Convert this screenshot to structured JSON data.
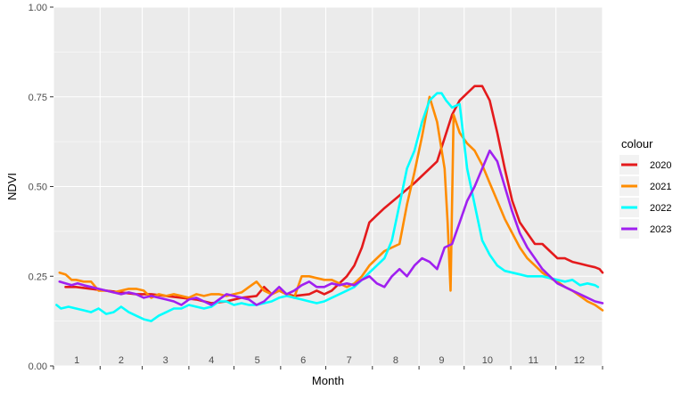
{
  "chart_data": {
    "type": "line",
    "xlabel": "Month",
    "ylabel": "NDVI",
    "ylim": [
      0,
      1
    ],
    "xlim": [
      0,
      365
    ],
    "y_ticks": [
      "0.00",
      "0.25",
      "0.50",
      "0.75",
      "1.00"
    ],
    "y_tick_values": [
      0,
      0.25,
      0.5,
      0.75,
      1.0
    ],
    "month_labels": [
      "1",
      "2",
      "3",
      "4",
      "5",
      "6",
      "7",
      "8",
      "9",
      "10",
      "11",
      "12"
    ],
    "grid": true,
    "legend": {
      "title": "colour",
      "position": "right"
    },
    "series": [
      {
        "name": "2020",
        "color": "#E41A1C",
        "x": [
          8,
          15,
          25,
          35,
          45,
          55,
          65,
          75,
          85,
          95,
          105,
          115,
          125,
          135,
          140,
          145,
          150,
          155,
          160,
          170,
          175,
          180,
          185,
          190,
          195,
          200,
          205,
          210,
          215,
          220,
          240,
          255,
          265,
          270,
          275,
          280,
          285,
          290,
          295,
          300,
          305,
          310,
          315,
          320,
          325,
          330,
          335,
          340,
          345,
          350,
          355,
          360,
          363,
          365
        ],
        "y": [
          0.22,
          0.22,
          0.215,
          0.21,
          0.205,
          0.2,
          0.2,
          0.195,
          0.19,
          0.185,
          0.175,
          0.18,
          0.19,
          0.195,
          0.22,
          0.2,
          0.21,
          0.2,
          0.195,
          0.2,
          0.21,
          0.2,
          0.21,
          0.23,
          0.25,
          0.28,
          0.33,
          0.4,
          0.42,
          0.44,
          0.51,
          0.57,
          0.7,
          0.74,
          0.76,
          0.78,
          0.78,
          0.74,
          0.65,
          0.55,
          0.46,
          0.4,
          0.37,
          0.34,
          0.34,
          0.32,
          0.3,
          0.3,
          0.29,
          0.285,
          0.28,
          0.275,
          0.27,
          0.26
        ]
      },
      {
        "name": "2021",
        "color": "#FF8C00",
        "x": [
          4,
          8,
          12,
          15,
          20,
          25,
          30,
          35,
          40,
          45,
          50,
          55,
          60,
          65,
          70,
          75,
          80,
          85,
          90,
          95,
          100,
          105,
          110,
          115,
          120,
          125,
          130,
          135,
          140,
          145,
          150,
          155,
          160,
          165,
          170,
          175,
          180,
          185,
          190,
          195,
          200,
          205,
          210,
          215,
          220,
          225,
          230,
          235,
          240,
          245,
          250,
          255,
          260,
          262,
          264,
          266,
          270,
          275,
          280,
          285,
          290,
          295,
          300,
          305,
          310,
          315,
          320,
          325,
          330,
          335,
          340,
          345,
          350,
          355,
          360,
          365
        ],
        "y": [
          0.26,
          0.255,
          0.24,
          0.24,
          0.235,
          0.235,
          0.21,
          0.21,
          0.205,
          0.21,
          0.215,
          0.215,
          0.21,
          0.19,
          0.2,
          0.195,
          0.2,
          0.195,
          0.19,
          0.2,
          0.195,
          0.2,
          0.2,
          0.195,
          0.2,
          0.205,
          0.22,
          0.235,
          0.21,
          0.2,
          0.21,
          0.2,
          0.19,
          0.25,
          0.25,
          0.245,
          0.24,
          0.24,
          0.23,
          0.22,
          0.23,
          0.25,
          0.28,
          0.3,
          0.32,
          0.33,
          0.34,
          0.45,
          0.54,
          0.64,
          0.75,
          0.68,
          0.55,
          0.4,
          0.21,
          0.7,
          0.65,
          0.62,
          0.6,
          0.56,
          0.51,
          0.46,
          0.41,
          0.37,
          0.33,
          0.3,
          0.28,
          0.26,
          0.245,
          0.235,
          0.22,
          0.21,
          0.195,
          0.18,
          0.17,
          0.155
        ]
      },
      {
        "name": "2022",
        "color": "#00FFFF",
        "x": [
          2,
          5,
          10,
          15,
          20,
          25,
          30,
          35,
          40,
          45,
          50,
          55,
          60,
          65,
          70,
          75,
          80,
          85,
          90,
          95,
          100,
          105,
          110,
          115,
          120,
          125,
          130,
          135,
          140,
          145,
          150,
          155,
          160,
          165,
          170,
          175,
          180,
          185,
          190,
          195,
          200,
          205,
          210,
          215,
          220,
          225,
          230,
          235,
          240,
          245,
          250,
          255,
          258,
          261,
          265,
          270,
          275,
          280,
          285,
          290,
          295,
          300,
          305,
          310,
          315,
          320,
          325,
          330,
          335,
          340,
          345,
          350,
          355,
          360,
          362
        ],
        "y": [
          0.17,
          0.16,
          0.165,
          0.16,
          0.155,
          0.15,
          0.16,
          0.145,
          0.15,
          0.165,
          0.15,
          0.14,
          0.13,
          0.125,
          0.14,
          0.15,
          0.16,
          0.16,
          0.17,
          0.165,
          0.16,
          0.165,
          0.18,
          0.18,
          0.17,
          0.175,
          0.17,
          0.17,
          0.175,
          0.18,
          0.19,
          0.195,
          0.19,
          0.185,
          0.18,
          0.175,
          0.18,
          0.19,
          0.2,
          0.21,
          0.22,
          0.24,
          0.26,
          0.28,
          0.3,
          0.35,
          0.45,
          0.55,
          0.6,
          0.68,
          0.74,
          0.76,
          0.76,
          0.74,
          0.72,
          0.73,
          0.55,
          0.45,
          0.35,
          0.31,
          0.28,
          0.265,
          0.26,
          0.255,
          0.25,
          0.25,
          0.25,
          0.245,
          0.24,
          0.235,
          0.24,
          0.225,
          0.23,
          0.225,
          0.22
        ]
      },
      {
        "name": "2023",
        "color": "#A020F0",
        "x": [
          4,
          8,
          12,
          16,
          20,
          25,
          30,
          35,
          40,
          45,
          50,
          55,
          60,
          65,
          70,
          75,
          80,
          85,
          90,
          95,
          100,
          105,
          110,
          115,
          120,
          125,
          130,
          135,
          140,
          145,
          150,
          155,
          160,
          165,
          170,
          175,
          180,
          185,
          190,
          195,
          200,
          205,
          210,
          215,
          220,
          225,
          230,
          235,
          240,
          245,
          250,
          255,
          260,
          265,
          270,
          275,
          280,
          285,
          290,
          295,
          300,
          305,
          310,
          315,
          320,
          325,
          330,
          335,
          340,
          345,
          350,
          355,
          360,
          365
        ],
        "y": [
          0.235,
          0.23,
          0.225,
          0.23,
          0.225,
          0.22,
          0.215,
          0.21,
          0.205,
          0.2,
          0.205,
          0.2,
          0.19,
          0.195,
          0.19,
          0.185,
          0.18,
          0.17,
          0.185,
          0.19,
          0.18,
          0.17,
          0.185,
          0.2,
          0.195,
          0.19,
          0.185,
          0.17,
          0.18,
          0.2,
          0.22,
          0.2,
          0.21,
          0.225,
          0.235,
          0.22,
          0.22,
          0.23,
          0.225,
          0.23,
          0.225,
          0.24,
          0.25,
          0.23,
          0.22,
          0.25,
          0.27,
          0.25,
          0.28,
          0.3,
          0.29,
          0.27,
          0.33,
          0.34,
          0.4,
          0.46,
          0.5,
          0.55,
          0.6,
          0.57,
          0.5,
          0.43,
          0.37,
          0.33,
          0.3,
          0.27,
          0.25,
          0.23,
          0.22,
          0.21,
          0.2,
          0.19,
          0.18,
          0.175
        ]
      }
    ]
  }
}
